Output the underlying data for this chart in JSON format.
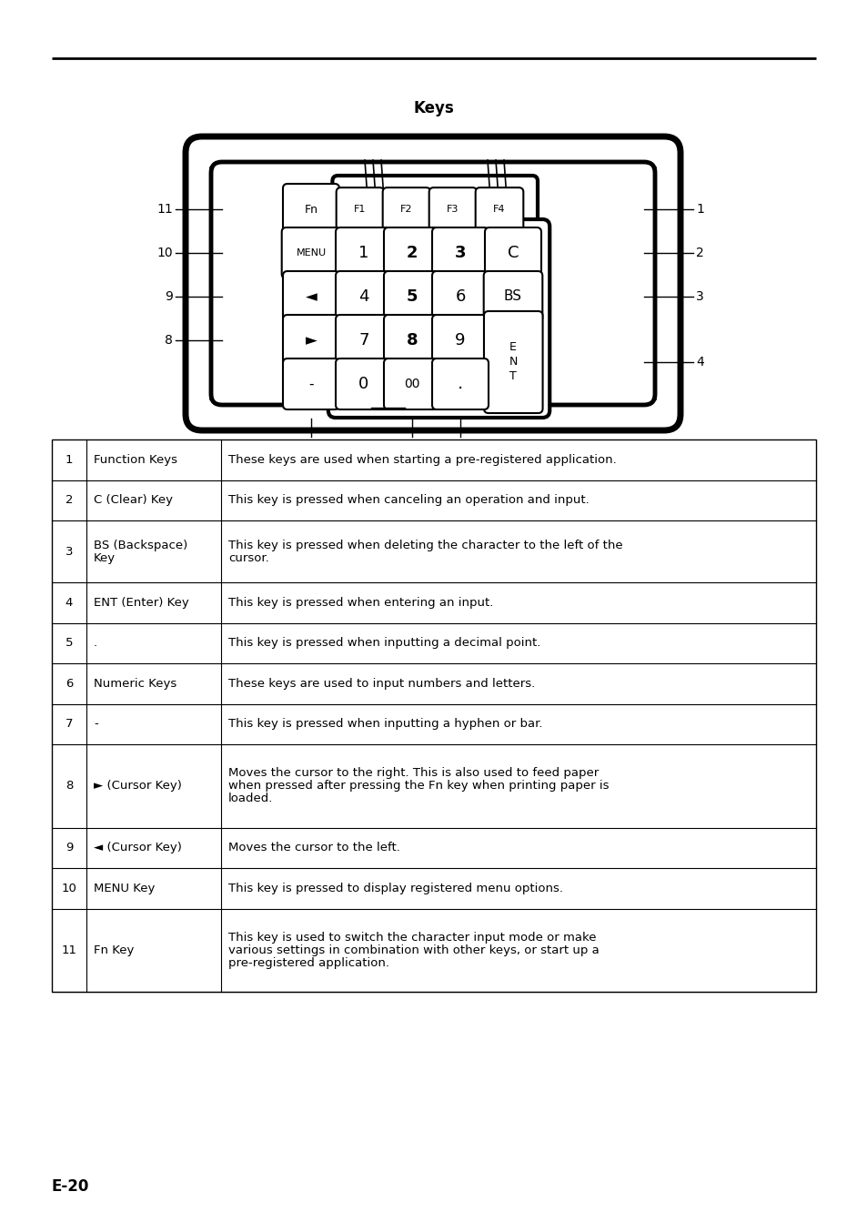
{
  "page_title": "Keys",
  "page_number": "E-20",
  "table_data": [
    {
      "num": "1",
      "key": "Function Keys",
      "desc": "These keys are used when starting a pre-registered application."
    },
    {
      "num": "2",
      "key": "C (Clear) Key",
      "desc": "This key is pressed when canceling an operation and input."
    },
    {
      "num": "3",
      "key": "BS (Backspace)\nKey",
      "desc": "This key is pressed when deleting the character to the left of the\ncursor."
    },
    {
      "num": "4",
      "key": "ENT (Enter) Key",
      "desc": "This key is pressed when entering an input."
    },
    {
      "num": "5",
      "key": ".",
      "desc": "This key is pressed when inputting a decimal point."
    },
    {
      "num": "6",
      "key": "Numeric Keys",
      "desc": "These keys are used to input numbers and letters."
    },
    {
      "num": "7",
      "key": "-",
      "desc": "This key is pressed when inputting a hyphen or bar."
    },
    {
      "num": "8",
      "key": "► (Cursor Key)",
      "desc": "Moves the cursor to the right. This is also used to feed paper\nwhen pressed after pressing the Fn key when printing paper is\nloaded."
    },
    {
      "num": "9",
      "key": "◄ (Cursor Key)",
      "desc": "Moves the cursor to the left."
    },
    {
      "num": "10",
      "key": "MENU Key",
      "desc": "This key is pressed to display registered menu options."
    },
    {
      "num": "11",
      "key": "Fn Key",
      "desc": "This key is used to switch the character input mode or make\nvarious settings in combination with other keys, or start up a\npre-registered application."
    }
  ],
  "background_color": "#ffffff",
  "text_color": "#000000"
}
